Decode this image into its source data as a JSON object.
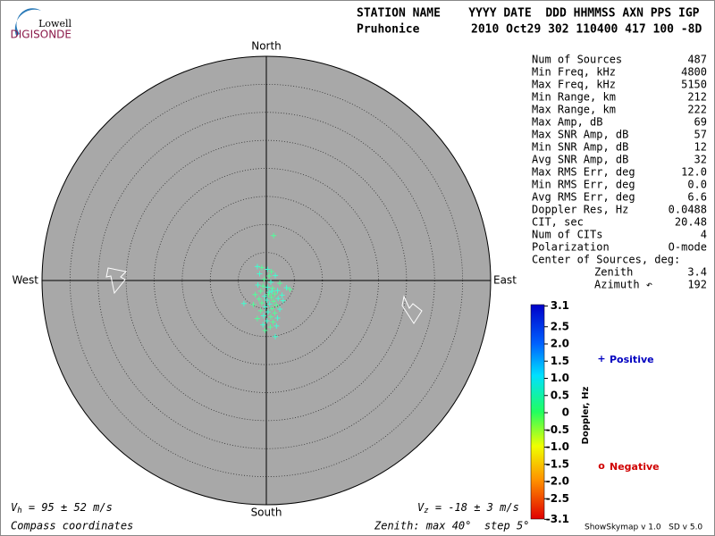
{
  "logo": {
    "top": "Lowell",
    "bottom": "DIGISONDE"
  },
  "header": {
    "labels": "STATION NAME    YYYY DATE  DDD HHMMSS AXN PPS IGP",
    "station": "Pruhonice",
    "values": "2010 Oct29 302 110400 417 100 -8D"
  },
  "compass": {
    "north": "North",
    "south": "South",
    "east": "East",
    "west": "West"
  },
  "stats": [
    [
      "Num of Sources",
      "487"
    ],
    [
      "Min Freq, kHz",
      "4800"
    ],
    [
      "Max Freq, kHz",
      "5150"
    ],
    [
      "Min Range, km",
      "212"
    ],
    [
      "Max Range, km",
      "222"
    ],
    [
      "Max Amp, dB",
      "69"
    ],
    [
      "Max SNR Amp, dB",
      "57"
    ],
    [
      "Min SNR Amp, dB",
      "12"
    ],
    [
      "Avg SNR Amp, dB",
      "32"
    ],
    [
      "Max RMS Err, deg",
      "12.0"
    ],
    [
      "Min RMS Err, deg",
      "0.0"
    ],
    [
      "Avg RMS Err, deg",
      "6.6"
    ],
    [
      "Doppler Res, Hz",
      "0.0488"
    ],
    [
      "CIT, sec",
      "20.48"
    ],
    [
      "Num of CITs",
      "4"
    ],
    [
      "Polarization",
      "O-mode"
    ]
  ],
  "center_title": "Center of Sources, deg:",
  "center_rows": [
    [
      "Zenith",
      "3.4"
    ],
    [
      "Azimuth ↶",
      "192"
    ]
  ],
  "colorbar": {
    "title": "Doppler, Hz",
    "ticks": [
      "3.1",
      "2.5",
      "2.0",
      "1.5",
      "1.0",
      "0.5",
      "0",
      "-0.5",
      "-1.0",
      "-1.5",
      "-2.0",
      "-2.5",
      "-3.1"
    ]
  },
  "legend": {
    "positive_symbol": "+",
    "positive": "Positive",
    "negative_symbol": "o",
    "negative": "Negative"
  },
  "vh": {
    "symbol": "V",
    "sub": "h",
    "text": " = 95 ± 52 m/s"
  },
  "vz": {
    "symbol": "V",
    "sub": "z",
    "text": " = -18 ± 3 m/s"
  },
  "footer": {
    "left": "Compass coordinates",
    "zenith": "Zenith: max 40°  step 5°",
    "version": "ShowSkymap v 1.0   SD v 5.0"
  },
  "skymap": {
    "point_colors": [
      "#50ff9a",
      "#40ffd0"
    ],
    "points": [
      [
        1.3,
        8.0
      ],
      [
        -1.6,
        2.5
      ],
      [
        -0.8,
        2.3
      ],
      [
        0.2,
        2.0
      ],
      [
        0.9,
        1.6
      ],
      [
        -1.2,
        1.2
      ],
      [
        0.5,
        0.8
      ],
      [
        1.6,
        0.9
      ],
      [
        -0.4,
        0.2
      ],
      [
        0.8,
        -0.3
      ],
      [
        2.4,
        -0.5
      ],
      [
        3.6,
        -1.3
      ],
      [
        4.2,
        -1.6
      ],
      [
        -1.5,
        -0.8
      ],
      [
        -0.6,
        -1.0
      ],
      [
        0.2,
        -1.2
      ],
      [
        1.1,
        -1.4
      ],
      [
        2.0,
        -1.8
      ],
      [
        -1.0,
        -1.9
      ],
      [
        0.5,
        -2.1
      ],
      [
        1.5,
        -2.4
      ],
      [
        2.8,
        -2.6
      ],
      [
        -2.0,
        -2.5
      ],
      [
        -0.3,
        -2.8
      ],
      [
        0.9,
        -3.0
      ],
      [
        2.1,
        -3.2
      ],
      [
        -1.3,
        -3.3
      ],
      [
        0.1,
        -3.5
      ],
      [
        1.3,
        -3.7
      ],
      [
        3.0,
        -3.6
      ],
      [
        -0.8,
        -4.0
      ],
      [
        0.6,
        -4.2
      ],
      [
        1.8,
        -4.4
      ],
      [
        -4.0,
        -4.1
      ],
      [
        -2.3,
        -4.3
      ],
      [
        -0.2,
        -4.7
      ],
      [
        1.0,
        -5.0
      ],
      [
        2.4,
        -5.1
      ],
      [
        -1.0,
        -5.4
      ],
      [
        0.3,
        -5.6
      ],
      [
        1.5,
        -5.8
      ],
      [
        -0.5,
        -6.3
      ],
      [
        0.8,
        -6.5
      ],
      [
        2.0,
        -6.7
      ],
      [
        -1.6,
        -6.8
      ],
      [
        0.1,
        -7.2
      ],
      [
        1.2,
        -7.4
      ],
      [
        -0.6,
        -7.9
      ],
      [
        0.7,
        -8.3
      ],
      [
        1.8,
        -8.1
      ],
      [
        -0.2,
        -8.9
      ],
      [
        1.6,
        -10.0
      ],
      [
        0.4,
        -2.5
      ],
      [
        1.0,
        -1.9
      ]
    ]
  }
}
